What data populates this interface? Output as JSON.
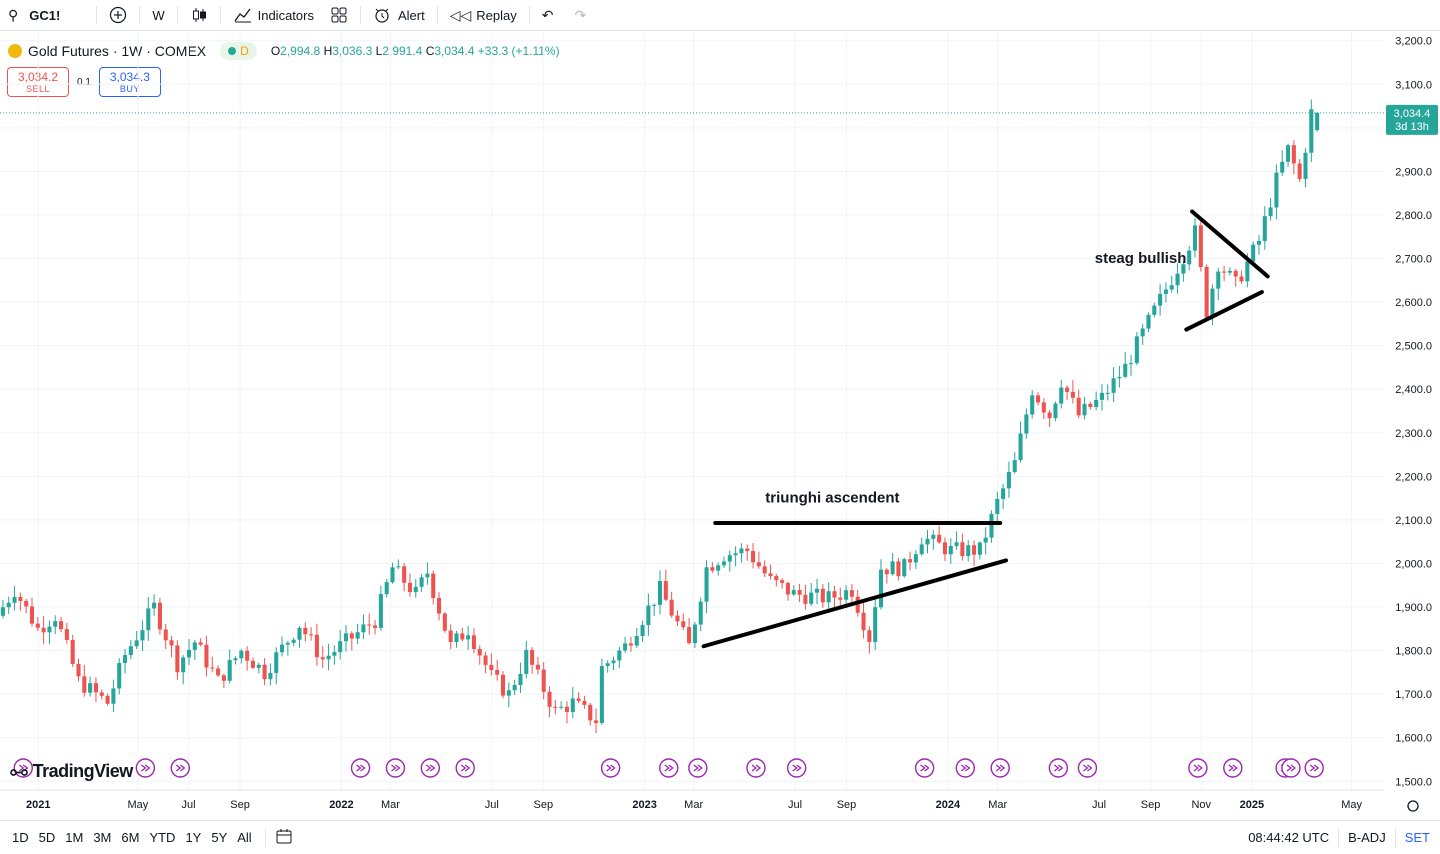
{
  "toolbar": {
    "symbol": "GC1!",
    "interval": "W",
    "indicators": "Indicators",
    "alert": "Alert",
    "replay": "Replay"
  },
  "legend": {
    "title": "Gold Futures · 1W · COMEX",
    "status": "D",
    "o_label": "O",
    "o": "2,994.8",
    "h_label": "H",
    "h": "3,036.3",
    "l_label": "L",
    "l": "2,991.4",
    "c_label": "C",
    "c": "3,034.4",
    "change": "+33.3 (+1.11%)"
  },
  "trade": {
    "sell_price": "3,034.2",
    "sell_label": "SELL",
    "spread": "0.1",
    "buy_price": "3,034.3",
    "buy_label": "BUY"
  },
  "price_tag": {
    "price": "3,034.4",
    "countdown": "3d 13h"
  },
  "watermark": "TradingView",
  "bottombar": {
    "ranges": [
      "1D",
      "5D",
      "1M",
      "3M",
      "6M",
      "YTD",
      "1Y",
      "5Y",
      "All"
    ],
    "time": "08:44:42 UTC",
    "adj": "B-ADJ",
    "session": "SET"
  },
  "colors": {
    "up": "#26a69a",
    "down": "#ef5350",
    "accent": "#2962ff",
    "event": "#9c27b0"
  },
  "chart_data": {
    "type": "candlestick",
    "instrument": "Gold Futures",
    "interval": "1W",
    "ylim": [
      1480,
      3220
    ],
    "yticks": [
      1500,
      1600,
      1700,
      1800,
      1900,
      2000,
      2100,
      2200,
      2300,
      2400,
      2500,
      2600,
      2700,
      2800,
      2900,
      3000,
      3100,
      3200
    ],
    "ytick_labels": [
      "1,500.0",
      "1,600.0",
      "1,700.0",
      "1,800.0",
      "1,900.0",
      "2,000.0",
      "2,100.0",
      "2,200.0",
      "2,300.0",
      "2,400.0",
      "2,500.0",
      "2,600.0",
      "2,700.0",
      "2,800.0",
      "2,900.0",
      "3,000.0",
      "3,100.0",
      "3,200.0"
    ],
    "xlim": [
      "2020-11-16",
      "2025-06-09"
    ],
    "xticks": [
      {
        "date": "2021-01-01",
        "label": "2021",
        "bold": true
      },
      {
        "date": "2021-05-01",
        "label": "May",
        "bold": false
      },
      {
        "date": "2021-07-01",
        "label": "Jul",
        "bold": false
      },
      {
        "date": "2021-09-01",
        "label": "Sep",
        "bold": false
      },
      {
        "date": "2022-01-01",
        "label": "2022",
        "bold": true
      },
      {
        "date": "2022-03-01",
        "label": "Mar",
        "bold": false
      },
      {
        "date": "2022-07-01",
        "label": "Jul",
        "bold": false
      },
      {
        "date": "2022-09-01",
        "label": "Sep",
        "bold": false
      },
      {
        "date": "2023-01-01",
        "label": "2023",
        "bold": true
      },
      {
        "date": "2023-03-01",
        "label": "Mar",
        "bold": false
      },
      {
        "date": "2023-07-01",
        "label": "Jul",
        "bold": false
      },
      {
        "date": "2023-09-01",
        "label": "Sep",
        "bold": false
      },
      {
        "date": "2024-01-01",
        "label": "2024",
        "bold": true
      },
      {
        "date": "2024-03-01",
        "label": "Mar",
        "bold": false
      },
      {
        "date": "2024-07-01",
        "label": "Jul",
        "bold": false
      },
      {
        "date": "2024-09-01",
        "label": "Sep",
        "bold": false
      },
      {
        "date": "2024-11-01",
        "label": "Nov",
        "bold": false
      },
      {
        "date": "2025-01-01",
        "label": "2025",
        "bold": true
      },
      {
        "date": "2025-05-01",
        "label": "May",
        "bold": false
      }
    ],
    "anchor_points": [
      [
        "2020-11-16",
        1880
      ],
      [
        "2020-12-07",
        1940
      ],
      [
        "2021-01-04",
        1850
      ],
      [
        "2021-01-25",
        1880
      ],
      [
        "2021-02-22",
        1730
      ],
      [
        "2021-03-29",
        1680
      ],
      [
        "2021-04-19",
        1790
      ],
      [
        "2021-05-24",
        1900
      ],
      [
        "2021-06-21",
        1770
      ],
      [
        "2021-07-12",
        1820
      ],
      [
        "2021-08-09",
        1730
      ],
      [
        "2021-09-06",
        1800
      ],
      [
        "2021-10-04",
        1750
      ],
      [
        "2021-11-15",
        1860
      ],
      [
        "2021-12-13",
        1780
      ],
      [
        "2022-01-10",
        1820
      ],
      [
        "2022-02-14",
        1870
      ],
      [
        "2022-03-07",
        1990
      ],
      [
        "2022-04-04",
        1930
      ],
      [
        "2022-04-18",
        1980
      ],
      [
        "2022-05-16",
        1810
      ],
      [
        "2022-06-06",
        1850
      ],
      [
        "2022-07-04",
        1740
      ],
      [
        "2022-07-25",
        1700
      ],
      [
        "2022-08-15",
        1790
      ],
      [
        "2022-09-19",
        1660
      ],
      [
        "2022-10-10",
        1680
      ],
      [
        "2022-11-07",
        1640
      ],
      [
        "2022-11-14",
        1760
      ],
      [
        "2022-12-12",
        1810
      ],
      [
        "2023-01-23",
        1940
      ],
      [
        "2023-02-27",
        1810
      ],
      [
        "2023-03-20",
        1990
      ],
      [
        "2023-04-10",
        2020
      ],
      [
        "2023-05-08",
        2030
      ],
      [
        "2023-06-05",
        1960
      ],
      [
        "2023-07-03",
        1930
      ],
      [
        "2023-08-14",
        1920
      ],
      [
        "2023-09-11",
        1940
      ],
      [
        "2023-10-02",
        1830
      ],
      [
        "2023-10-16",
        1990
      ],
      [
        "2023-11-13",
        1990
      ],
      [
        "2023-12-04",
        2060
      ],
      [
        "2024-01-08",
        2030
      ],
      [
        "2024-02-12",
        2030
      ],
      [
        "2024-03-04",
        2140
      ],
      [
        "2024-03-25",
        2230
      ],
      [
        "2024-04-15",
        2400
      ],
      [
        "2024-05-06",
        2340
      ],
      [
        "2024-05-20",
        2420
      ],
      [
        "2024-06-10",
        2340
      ],
      [
        "2024-07-08",
        2380
      ],
      [
        "2024-08-05",
        2450
      ],
      [
        "2024-09-09",
        2580
      ],
      [
        "2024-10-07",
        2680
      ],
      [
        "2024-10-28",
        2760
      ],
      [
        "2024-11-11",
        2580
      ],
      [
        "2024-11-25",
        2690
      ],
      [
        "2024-12-16",
        2640
      ],
      [
        "2025-01-13",
        2740
      ],
      [
        "2025-02-03",
        2880
      ],
      [
        "2025-02-17",
        2950
      ],
      [
        "2025-03-03",
        2880
      ],
      [
        "2025-03-17",
        3034.4
      ]
    ],
    "last_candle": {
      "open": 2994.8,
      "high": 3036.3,
      "low": 2991.4,
      "close": 3034.4
    },
    "annotations": [
      {
        "text": "triunghi ascendent",
        "x": "2023-08-15",
        "y": 2140
      },
      {
        "text": "steag bullish",
        "x": "2024-08-20",
        "y": 2690
      }
    ],
    "drawings": [
      {
        "name": "ascending-triangle-resistance",
        "points": [
          [
            "2023-03-27",
            2093
          ],
          [
            "2024-03-04",
            2093
          ]
        ]
      },
      {
        "name": "ascending-triangle-support",
        "points": [
          [
            "2023-03-13",
            1810
          ],
          [
            "2024-03-11",
            2007
          ]
        ]
      },
      {
        "name": "flag-upper-line",
        "points": [
          [
            "2024-10-21",
            2808
          ],
          [
            "2025-01-20",
            2659
          ]
        ]
      },
      {
        "name": "flag-lower-line",
        "points": [
          [
            "2024-10-14",
            2537
          ],
          [
            "2025-01-13",
            2623
          ]
        ]
      }
    ],
    "event_markers": [
      "2020-12-14",
      "2021-05-10",
      "2021-06-21",
      "2022-01-24",
      "2022-03-07",
      "2022-04-18",
      "2022-05-30",
      "2022-11-21",
      "2023-01-30",
      "2023-03-06",
      "2023-05-15",
      "2023-07-03",
      "2023-12-04",
      "2024-01-22",
      "2024-03-04",
      "2024-05-13",
      "2024-06-17",
      "2024-10-28",
      "2024-12-09",
      "2025-02-10",
      "2025-02-17",
      "2025-03-17"
    ],
    "grid": true,
    "legend_position": "top-left"
  }
}
